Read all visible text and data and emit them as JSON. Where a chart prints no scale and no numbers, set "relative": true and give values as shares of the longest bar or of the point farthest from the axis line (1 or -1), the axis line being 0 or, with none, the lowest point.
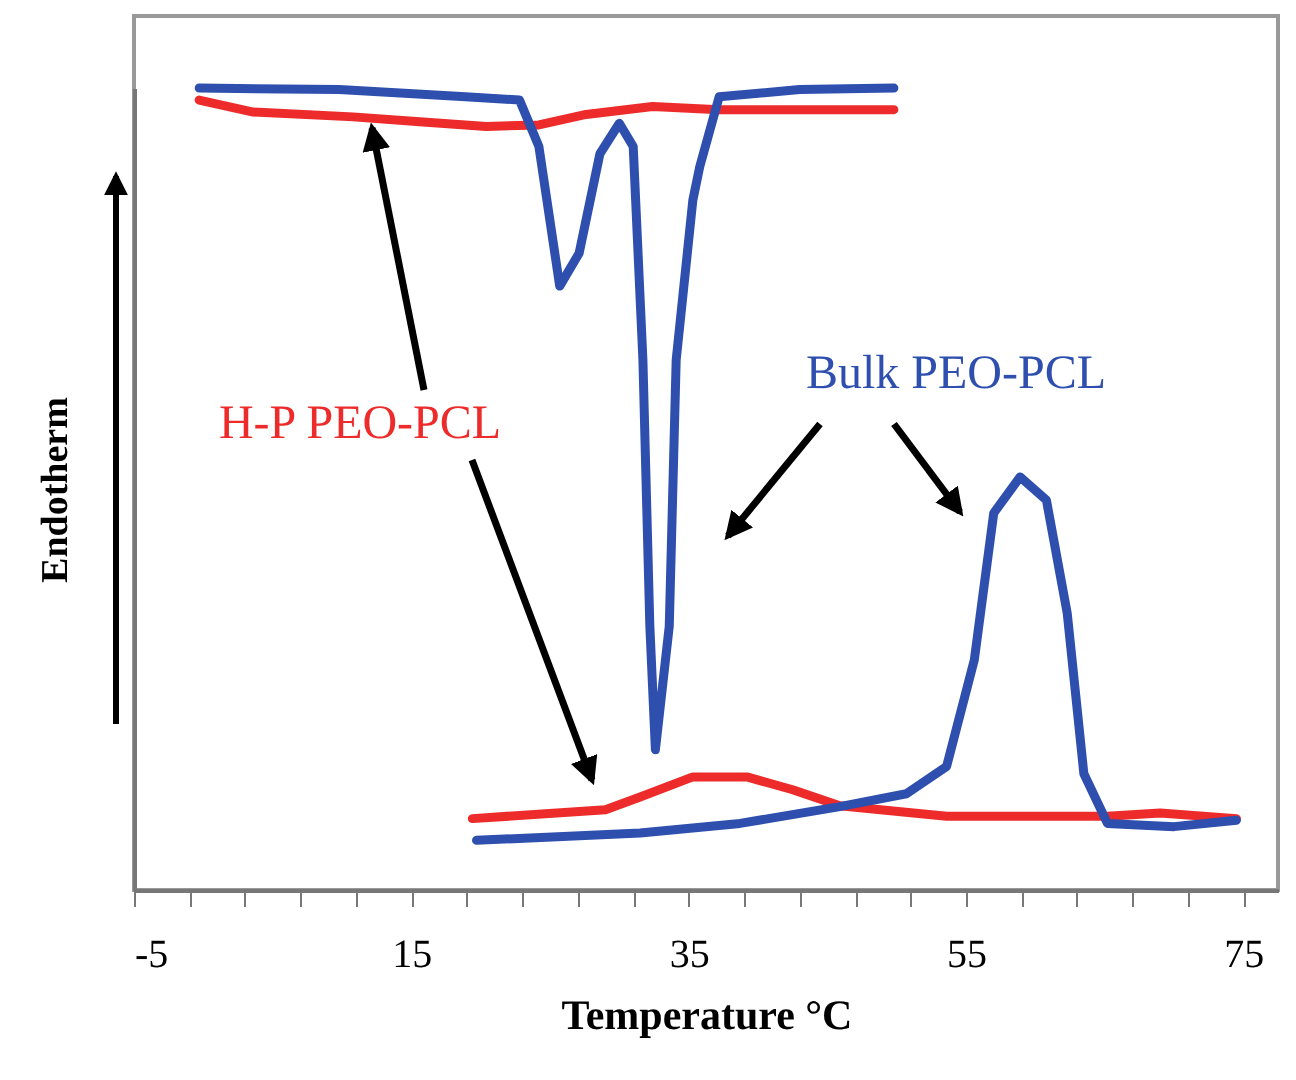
{
  "chart_data": {
    "type": "line",
    "relative": true,
    "xlabel": "Temperature °C",
    "ylabel": "Endotherm",
    "xlim": [
      -5,
      77.5
    ],
    "xticks": [
      -5,
      {
        "value": -1,
        "label": null
      },
      {
        "value": 3,
        "label": null
      },
      {
        "value": 7,
        "label": null
      },
      {
        "value": 11,
        "label": null
      },
      15,
      {
        "value": 19,
        "label": null
      },
      {
        "value": 23,
        "label": null
      },
      {
        "value": 27,
        "label": null
      },
      {
        "value": 31,
        "label": null
      },
      35,
      {
        "value": 39,
        "label": null
      },
      {
        "value": 43,
        "label": null
      },
      {
        "value": 47,
        "label": null
      },
      {
        "value": 51,
        "label": null
      },
      55,
      {
        "value": 59,
        "label": null
      },
      {
        "value": 63,
        "label": null
      },
      {
        "value": 67,
        "label": null
      },
      {
        "value": 71,
        "label": null
      },
      75
    ],
    "legend": false,
    "marker": "none",
    "line_style": "solid",
    "series": [
      {
        "name": "H-P PEO-PCL",
        "color": "#ee2b2b",
        "x": [
          19.4,
          29.0,
          31.5,
          35.3,
          39.2,
          42.5,
          45.9,
          53.6,
          65.2,
          69.0,
          74.5
        ],
        "values": [
          0.089,
          0.1,
          0.116,
          0.141,
          0.141,
          0.125,
          0.105,
          0.092,
          0.092,
          0.096,
          0.089
        ]
      },
      {
        "color": "#ee2b2b",
        "x": [
          -0.3,
          3.6,
          10.8,
          15.6,
          20.4,
          24.2,
          27.6,
          32.4,
          37.2,
          49.8
        ],
        "values": [
          0.985,
          0.97,
          0.964,
          0.958,
          0.952,
          0.954,
          0.967,
          0.977,
          0.973,
          0.973
        ]
      },
      {
        "name": "Bulk PEO-PCL",
        "color": "#2e4fae",
        "x": [
          19.7,
          31.5,
          38.7,
          45.9,
          50.7,
          53.6,
          55.6,
          57.0,
          58.9,
          60.8,
          62.3,
          63.5,
          65.2,
          70.0,
          74.5
        ],
        "values": [
          0.062,
          0.071,
          0.083,
          0.104,
          0.12,
          0.154,
          0.287,
          0.47,
          0.515,
          0.486,
          0.345,
          0.145,
          0.083,
          0.079,
          0.087
        ]
      },
      {
        "color": "#2e4fae",
        "x": [
          -0.3,
          9.8,
          18.9,
          22.8,
          24.2,
          25.7,
          27.1,
          28.6,
          30.0,
          31.0,
          31.7,
          32.2,
          32.6,
          33.6,
          34.1,
          35.3,
          35.8,
          37.2,
          43.0,
          49.8
        ],
        "values": [
          1.0,
          0.998,
          0.989,
          0.985,
          0.927,
          0.753,
          0.794,
          0.918,
          0.956,
          0.927,
          0.661,
          0.329,
          0.175,
          0.329,
          0.661,
          0.86,
          0.902,
          0.989,
          0.998,
          1.0
        ]
      }
    ]
  }
}
